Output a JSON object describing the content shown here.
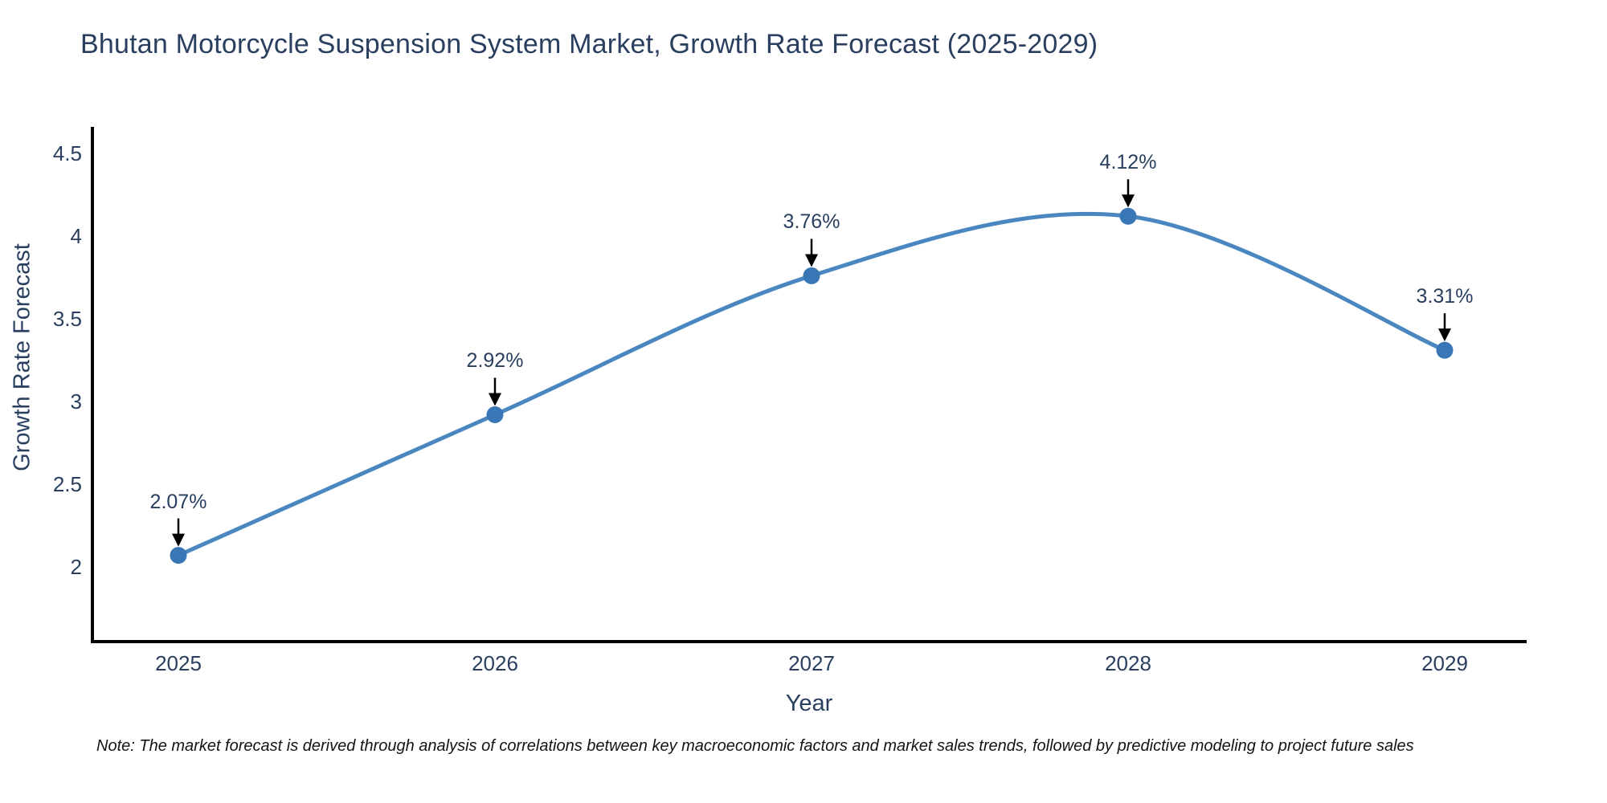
{
  "page": {
    "background": "#ffffff"
  },
  "colors": {
    "line": "#4a87c1",
    "marker": "#3876b5",
    "text": "#2a3f5f",
    "axis": "#000000",
    "annotation_arrow": "#000000"
  },
  "note": {
    "text": "Note: The market forecast is derived through analysis of correlations between key macroeconomic factors and market sales trends, followed by predictive modeling to project future sales"
  },
  "chart_data": {
    "type": "line",
    "title": "Bhutan Motorcycle Suspension System Market, Growth Rate Forecast (2025-2029)",
    "xlabel": "Year",
    "ylabel": "Growth Rate Forecast",
    "categories": [
      "2025",
      "2026",
      "2027",
      "2028",
      "2029"
    ],
    "values": [
      2.07,
      2.92,
      3.76,
      4.12,
      3.31
    ],
    "labels": [
      "2.07%",
      "2.92%",
      "3.76%",
      "4.12%",
      "3.31%"
    ],
    "series_name": "Growth Rate Forecast",
    "y_ticks": [
      "4.5",
      "4",
      "3.5",
      "3",
      "2.5",
      "2"
    ],
    "y_tick_values": [
      4.5,
      4.0,
      3.5,
      3.0,
      2.5,
      2.0
    ],
    "ylim": [
      1.55,
      4.66
    ],
    "grid": false,
    "legend_position": "none",
    "line_shape": "spline",
    "marker": "circle",
    "point_annotations_with_arrows": true
  }
}
